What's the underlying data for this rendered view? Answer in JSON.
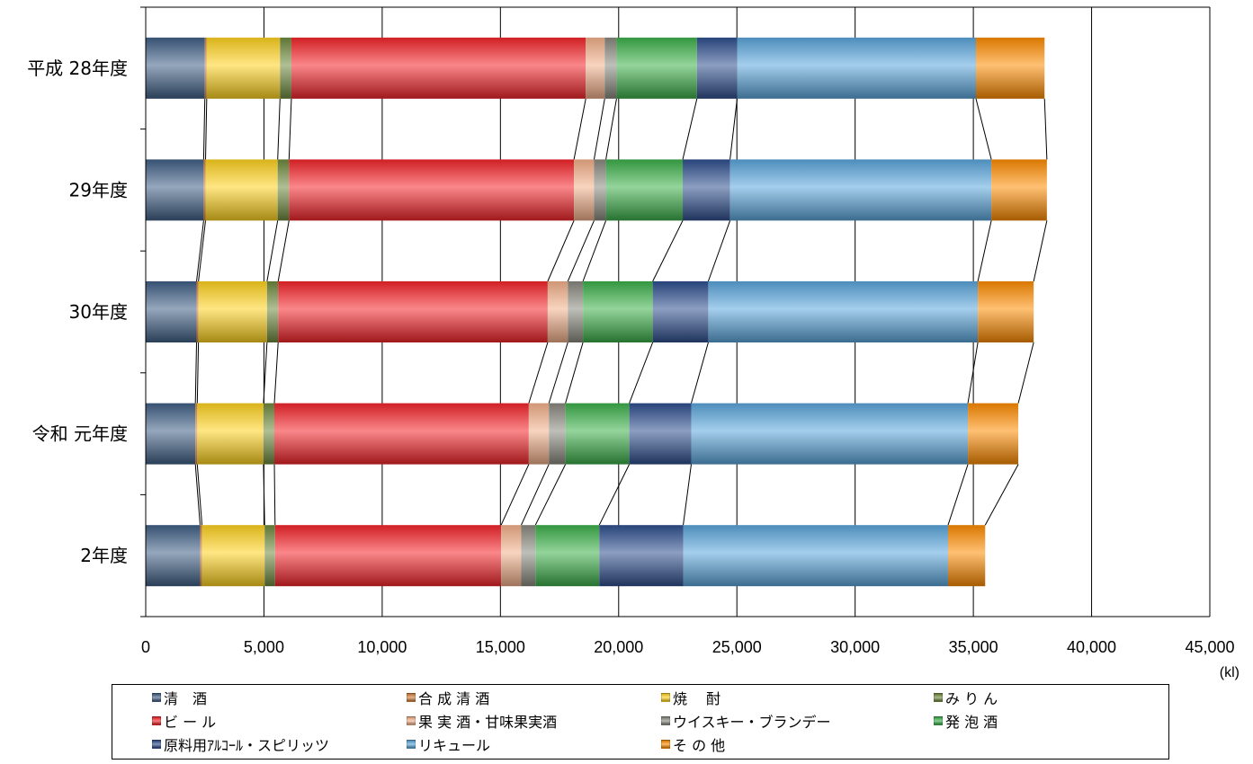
{
  "chart_data": {
    "type": "bar",
    "orientation": "horizontal",
    "stacked": true,
    "categories": [
      "平成 28年度",
      "29年度",
      "30年度",
      "令和 元年度",
      "2年度"
    ],
    "series": [
      {
        "name": "清　酒",
        "color": "#3f5f86",
        "values": [
          2500,
          2450,
          2150,
          2100,
          2300
        ]
      },
      {
        "name": "合 成 清 酒",
        "color": "#d4803c",
        "values": [
          80,
          80,
          80,
          80,
          80
        ]
      },
      {
        "name": "焼　 酎",
        "color": "#ffd21e",
        "values": [
          3100,
          3050,
          2900,
          2800,
          2650
        ]
      },
      {
        "name": "み り ん",
        "color": "#6f8a3d",
        "values": [
          480,
          480,
          470,
          460,
          440
        ]
      },
      {
        "name": "ビ ー ル",
        "color": "#f5252a",
        "values": [
          12450,
          12050,
          11400,
          10760,
          9560
        ]
      },
      {
        "name": "果 実 酒・甘味果実酒",
        "color": "#f3b08a",
        "values": [
          800,
          850,
          850,
          850,
          850
        ]
      },
      {
        "name": "ウイスキー・ブランデー",
        "color": "#8a8a80",
        "values": [
          500,
          500,
          640,
          700,
          600
        ]
      },
      {
        "name": "発 泡 酒",
        "color": "#3cb04a",
        "values": [
          3400,
          3250,
          2950,
          2700,
          2700
        ]
      },
      {
        "name": "原料用ｱﾙｺｰﾙ・スピリッツ",
        "color": "#2e4f8e",
        "values": [
          1700,
          2000,
          2350,
          2620,
          3550
        ]
      },
      {
        "name": "リキュール",
        "color": "#5aa6dc",
        "values": [
          10100,
          11050,
          11400,
          11700,
          11200
        ]
      },
      {
        "name": "そ の 他",
        "color": "#ff8c00",
        "values": [
          2900,
          2350,
          2360,
          2130,
          1570
        ]
      }
    ],
    "xlim": [
      0,
      45000
    ],
    "xticks": [
      0,
      5000,
      10000,
      15000,
      20000,
      25000,
      30000,
      35000,
      40000,
      45000
    ],
    "xtick_labels": [
      "0",
      "5,000",
      "10,000",
      "15,000",
      "20,000",
      "25,000",
      "30,000",
      "35,000",
      "40,000",
      "45,000"
    ],
    "unit_label": "(kl)",
    "grid": true,
    "legend_position": "bottom"
  }
}
